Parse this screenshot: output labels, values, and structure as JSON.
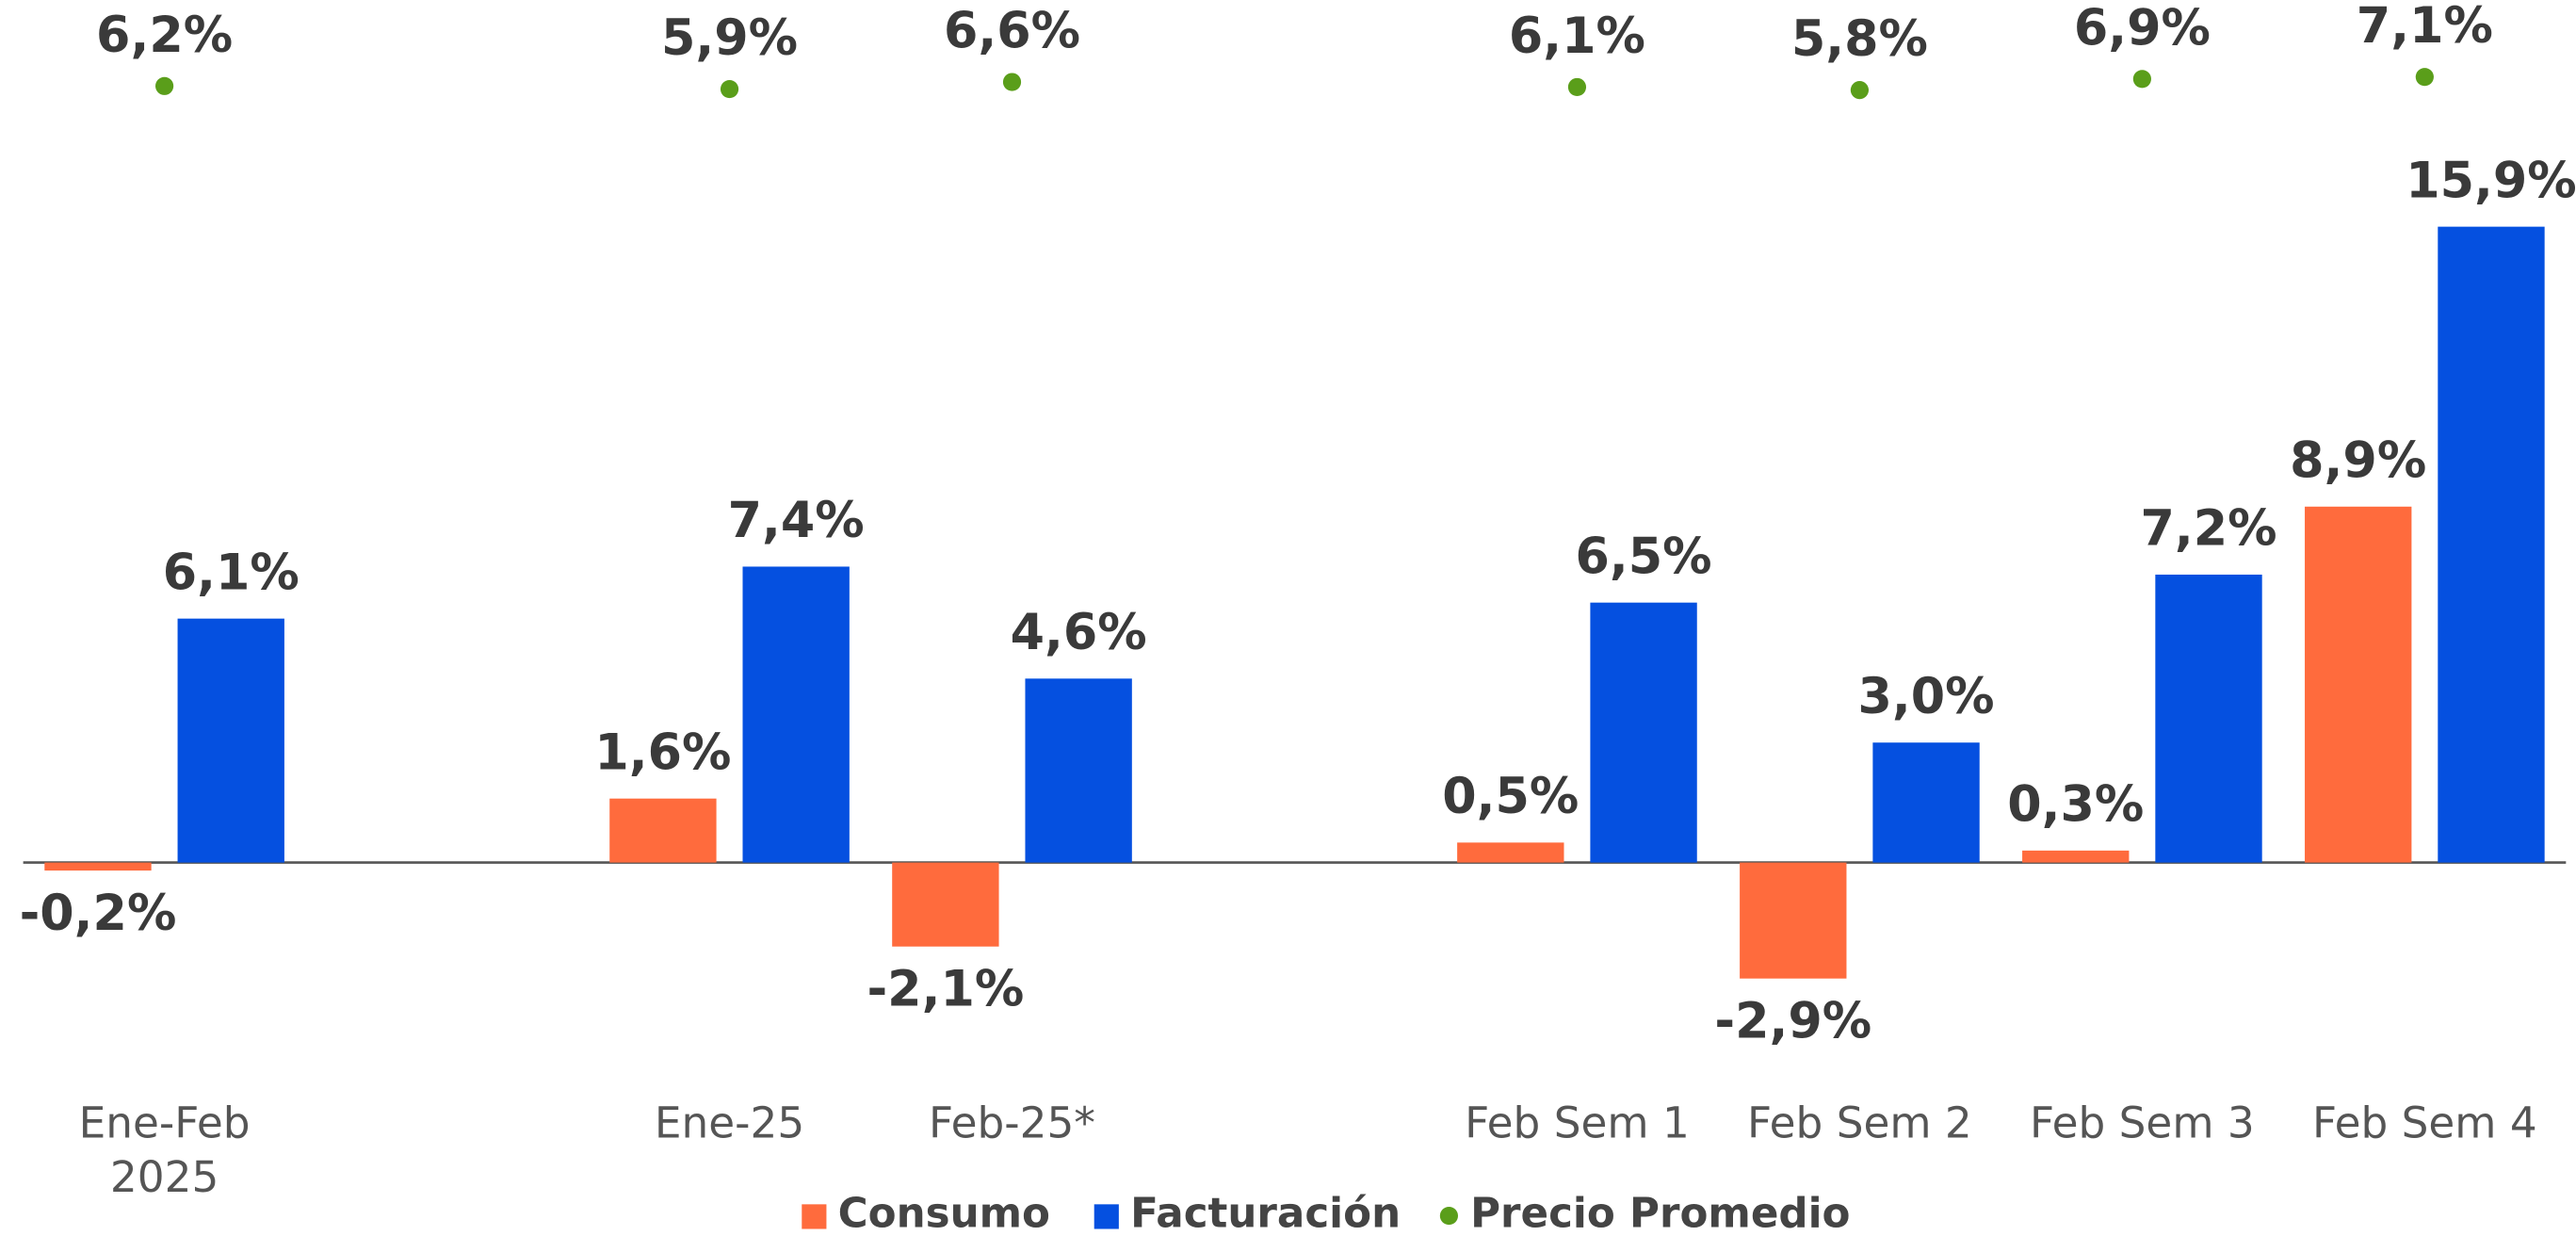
{
  "chart_data": {
    "type": "bar",
    "categories": [
      "Ene-Feb\n2025",
      null,
      "Ene-25",
      "Feb-25*",
      null,
      "Feb Sem 1",
      "Feb Sem 2",
      "Feb Sem 3",
      "Feb Sem 4"
    ],
    "series": [
      {
        "name": "Consumo",
        "color": "#ff6b3d",
        "values": [
          -0.2,
          null,
          1.6,
          -2.1,
          null,
          0.5,
          -2.9,
          0.3,
          8.9
        ],
        "value_labels": [
          "-0,2%",
          null,
          "1,6%",
          "-2,1%",
          null,
          "0,5%",
          "-2,9%",
          "0,3%",
          "8,9%"
        ]
      },
      {
        "name": "Facturación",
        "color": "#0550e0",
        "values": [
          6.1,
          null,
          7.4,
          4.6,
          null,
          6.5,
          3.0,
          7.2,
          15.9
        ],
        "value_labels": [
          "6,1%",
          null,
          "7,4%",
          "4,6%",
          null,
          "6,5%",
          "3,0%",
          "7,2%",
          "15,9%"
        ]
      },
      {
        "name": "Precio Promedio",
        "color": "#5a9e1a",
        "type": "scatter",
        "axis": "y2",
        "values": [
          6.2,
          null,
          5.9,
          6.6,
          null,
          6.1,
          5.8,
          6.9,
          7.1
        ],
        "value_labels": [
          "6,2%",
          null,
          "5,9%",
          "6,6%",
          null,
          "6,1%",
          "5,8%",
          "6,9%",
          "7,1%"
        ]
      }
    ],
    "ylim": [
      -5,
      17
    ],
    "y2lim": [
      0,
      10
    ],
    "legend": "bottom"
  }
}
